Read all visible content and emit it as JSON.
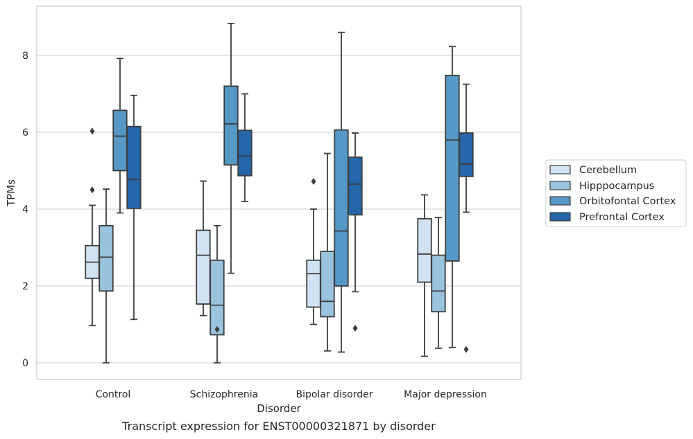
{
  "chart_data": {
    "type": "boxplot",
    "caption": "Transcript expression for ENST00000321871 by disorder",
    "xlabel": "Disorder",
    "ylabel": "TPMs",
    "ylim": [
      -0.4,
      9.3
    ],
    "yticks": [
      "0",
      "2",
      "4",
      "6",
      "8"
    ],
    "grid": true,
    "legend_position": "right",
    "categories": [
      "Control",
      "Schizophrenia",
      "Bipolar disorder",
      "Major depression"
    ],
    "series": [
      {
        "name": "Cerebellum",
        "color": "#d1e2f2",
        "boxes": [
          {
            "whislo": 0.97,
            "q1": 2.2,
            "med": 2.62,
            "q3": 3.05,
            "whishi": 4.1,
            "fliers": [
              4.5,
              6.03
            ]
          },
          {
            "whislo": 1.23,
            "q1": 1.53,
            "med": 2.8,
            "q3": 3.45,
            "whishi": 4.73,
            "fliers": []
          },
          {
            "whislo": 1.0,
            "q1": 1.45,
            "med": 2.32,
            "q3": 2.67,
            "whishi": 4.0,
            "fliers": [
              4.72
            ]
          },
          {
            "whislo": 0.17,
            "q1": 2.1,
            "med": 2.83,
            "q3": 3.75,
            "whishi": 4.37,
            "fliers": []
          }
        ]
      },
      {
        "name": "Hipppocampus",
        "color": "#9ac3dd",
        "boxes": [
          {
            "whislo": 0.0,
            "q1": 1.87,
            "med": 2.75,
            "q3": 3.57,
            "whishi": 4.52,
            "fliers": []
          },
          {
            "whislo": 0.0,
            "q1": 0.73,
            "med": 1.5,
            "q3": 2.67,
            "whishi": 3.57,
            "fliers": [
              0.87
            ]
          },
          {
            "whislo": 0.31,
            "q1": 1.2,
            "med": 1.6,
            "q3": 2.9,
            "whishi": 5.45,
            "fliers": []
          },
          {
            "whislo": 0.38,
            "q1": 1.33,
            "med": 1.87,
            "q3": 2.8,
            "whishi": 3.78,
            "fliers": []
          }
        ]
      },
      {
        "name": "Orbitofontal Cortex",
        "color": "#5698c6",
        "boxes": [
          {
            "whislo": 3.9,
            "q1": 5.0,
            "med": 5.9,
            "q3": 6.57,
            "whishi": 7.92,
            "fliers": []
          },
          {
            "whislo": 2.33,
            "q1": 5.15,
            "med": 6.22,
            "q3": 7.2,
            "whishi": 8.83,
            "fliers": []
          },
          {
            "whislo": 0.28,
            "q1": 2.0,
            "med": 3.43,
            "q3": 6.06,
            "whishi": 8.6,
            "fliers": []
          },
          {
            "whislo": 0.4,
            "q1": 2.65,
            "med": 5.8,
            "q3": 7.48,
            "whishi": 8.23,
            "fliers": []
          }
        ]
      },
      {
        "name": "Prefrontal Cortex",
        "color": "#2565a9",
        "boxes": [
          {
            "whislo": 1.13,
            "q1": 4.02,
            "med": 4.77,
            "q3": 6.15,
            "whishi": 6.96,
            "fliers": []
          },
          {
            "whislo": 4.2,
            "q1": 4.87,
            "med": 5.38,
            "q3": 6.05,
            "whishi": 7.0,
            "fliers": []
          },
          {
            "whislo": 1.85,
            "q1": 3.85,
            "med": 4.65,
            "q3": 5.35,
            "whishi": 5.98,
            "fliers": [
              0.9
            ]
          },
          {
            "whislo": 3.92,
            "q1": 4.85,
            "med": 5.17,
            "q3": 5.98,
            "whishi": 7.25,
            "fliers": [
              0.35
            ]
          }
        ]
      }
    ]
  }
}
